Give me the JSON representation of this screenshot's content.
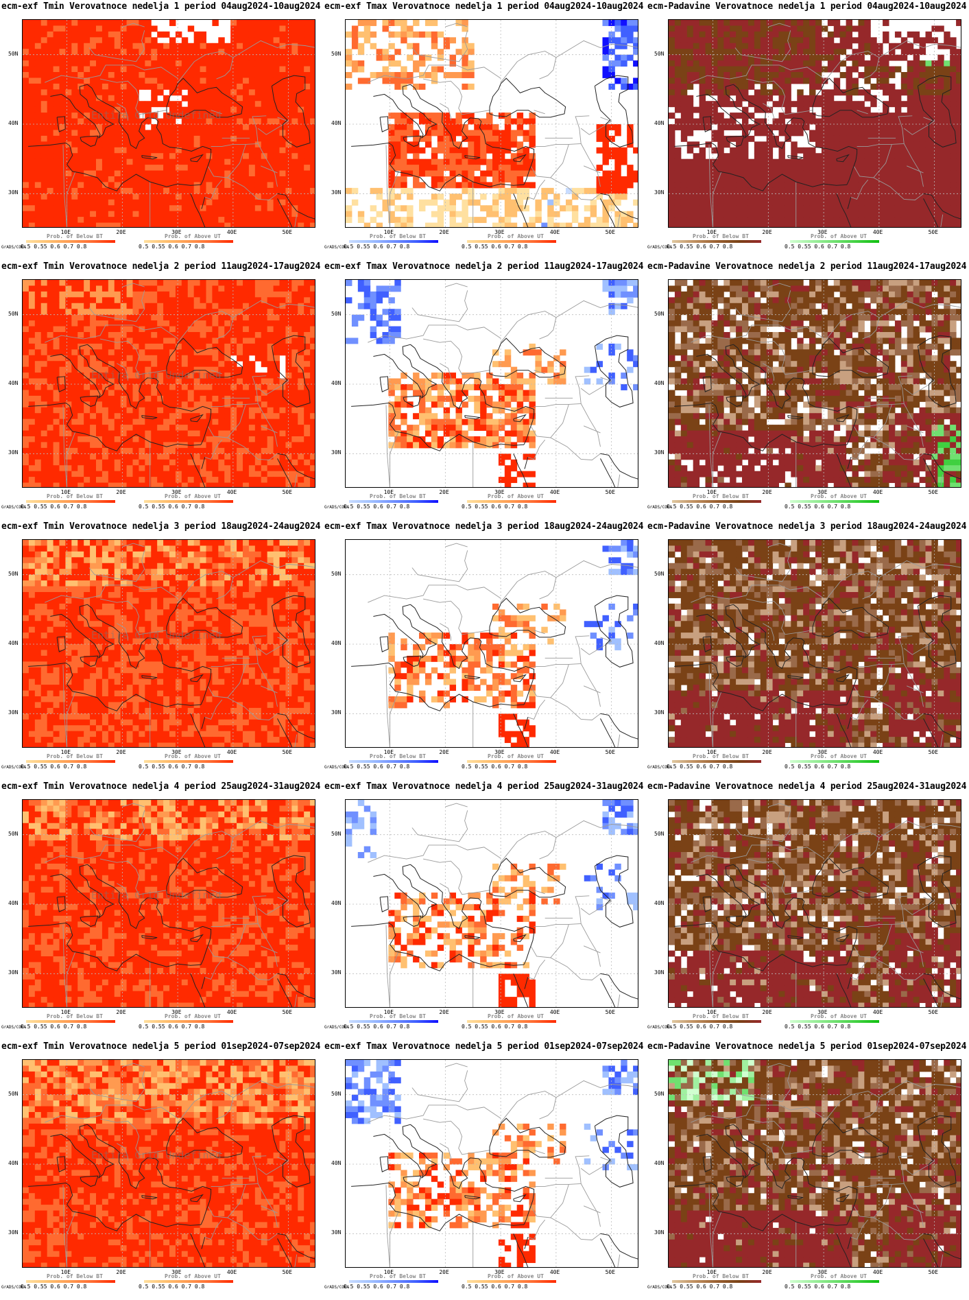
{
  "credit": "GrADS/COLA",
  "x_ticks": [
    "10E",
    "20E",
    "30E",
    "40E",
    "50E"
  ],
  "y_ticks": [
    "50N",
    "40N",
    "30N"
  ],
  "watermark": "Entire Grid Undefined",
  "colorbar_ticks": "0.5  0.55  0.6  0.7  0.8",
  "rows": [
    {
      "week": 1,
      "panels": [
        {
          "title": "ecm-exf Tmin Verovatnoce nedelja 1 period 04aug2024-10aug2024",
          "variable": "tmin",
          "left_label": "Prob. of Below BT",
          "right_label": "Prob. of Above UT",
          "watermark": true
        },
        {
          "title": "ecm-exf Tmax Verovatnoce nedelja 1 period 04aug2024-10aug2024",
          "variable": "tmax",
          "left_label": "Prob. of Below BT",
          "right_label": "Prob. of Above UT"
        },
        {
          "title": "ecm-Padavine Verovatnoce nedelja 1 period 04aug2024-10aug2024",
          "variable": "precip",
          "left_label": "Prob. of Below BT",
          "right_label": "Prob. of Above UT"
        }
      ]
    },
    {
      "week": 2,
      "panels": [
        {
          "title": "ecm-exf Tmin Verovatnoce nedelja 2 period 11aug2024-17aug2024",
          "variable": "tmin",
          "left_label": "Prob. of Below BT",
          "right_label": "Prob. of Above UT",
          "watermark": true
        },
        {
          "title": "ecm-exf Tmax Verovatnoce nedelja 2 period 11aug2024-17aug2024",
          "variable": "tmax",
          "left_label": "Prob. of Below BT",
          "right_label": "Prob. of Above UT"
        },
        {
          "title": "ecm-Padavine Verovatnoce nedelja 2 period 11aug2024-17aug2024",
          "variable": "precip",
          "left_label": "Prob. of Below BT",
          "right_label": "Prob. of Above UT"
        }
      ]
    },
    {
      "week": 3,
      "panels": [
        {
          "title": "ecm-exf Tmin Verovatnoce nedelja 3 period 18aug2024-24aug2024",
          "variable": "tmin",
          "left_label": "Prob. of Below BT",
          "right_label": "Prob. of Above UT",
          "watermark": true
        },
        {
          "title": "ecm-exf Tmax Verovatnoce nedelja 3 period 18aug2024-24aug2024",
          "variable": "tmax",
          "left_label": "Prob. of Below BT",
          "right_label": "Prob. of Above UT"
        },
        {
          "title": "ecm-Padavine Verovatnoce nedelja 3 period 18aug2024-24aug2024",
          "variable": "precip",
          "left_label": "Prob. of Below BT",
          "right_label": "Prob. of Above UT"
        }
      ]
    },
    {
      "week": 4,
      "panels": [
        {
          "title": "ecm-exf Tmin Verovatnoce nedelja 4 period 25aug2024-31aug2024",
          "variable": "tmin",
          "left_label": "Prob. of Below BT",
          "right_label": "Prob. of Above UT",
          "watermark": true
        },
        {
          "title": "ecm-exf Tmax Verovatnoce nedelja 4 period 25aug2024-31aug2024",
          "variable": "tmax",
          "left_label": "Prob. of Below BT",
          "right_label": "Prob. of Above UT"
        },
        {
          "title": "ecm-Padavine Verovatnoce nedelja 4 period 25aug2024-31aug2024",
          "variable": "precip",
          "left_label": "Prob. of Below BT",
          "right_label": "Prob. of Above UT"
        }
      ]
    },
    {
      "week": 5,
      "panels": [
        {
          "title": "ecm-exf Tmin Verovatnoce nedelja 5 period 01sep2024-07sep2024",
          "variable": "tmin",
          "left_label": "Prob. of Below BT",
          "right_label": "Prob. of Above UT",
          "watermark": true
        },
        {
          "title": "ecm-exf Tmax Verovatnoce nedelja 5 period 01sep2024-07sep2024",
          "variable": "tmax",
          "left_label": "Prob. of Below BT",
          "right_label": "Prob. of Above UT"
        },
        {
          "title": "ecm-Padavine Verovatnoce nedelja 5 period 01sep2024-07sep2024",
          "variable": "precip",
          "left_label": "Prob. of Below BT",
          "right_label": "Prob. of Above UT"
        }
      ]
    }
  ],
  "colors": {
    "tmin_dominant": "#ff2a00",
    "tmin_secondary": "#ff6a2a",
    "tmax_above": "#ff4a1a",
    "tmax_below": "#2a50ff",
    "precip_below_dark": "#96282a",
    "precip_below_mid": "#7a4216",
    "precip_above": "#33dd33",
    "below_scale": [
      "#c8dcff",
      "#a0c0ff",
      "#7090ff",
      "#4060ff",
      "#1010ff"
    ],
    "above_scale_warm": [
      "#ffe0a0",
      "#ffc070",
      "#ff9a50",
      "#ff6a30",
      "#ff2a00"
    ],
    "below_scale_precip": [
      "#e0c8a0",
      "#c09060",
      "#9a6030",
      "#7a4216",
      "#96282a"
    ],
    "above_scale_precip": [
      "#d0ffd0",
      "#a0f0a0",
      "#70e070",
      "#40d040",
      "#10c010"
    ]
  }
}
